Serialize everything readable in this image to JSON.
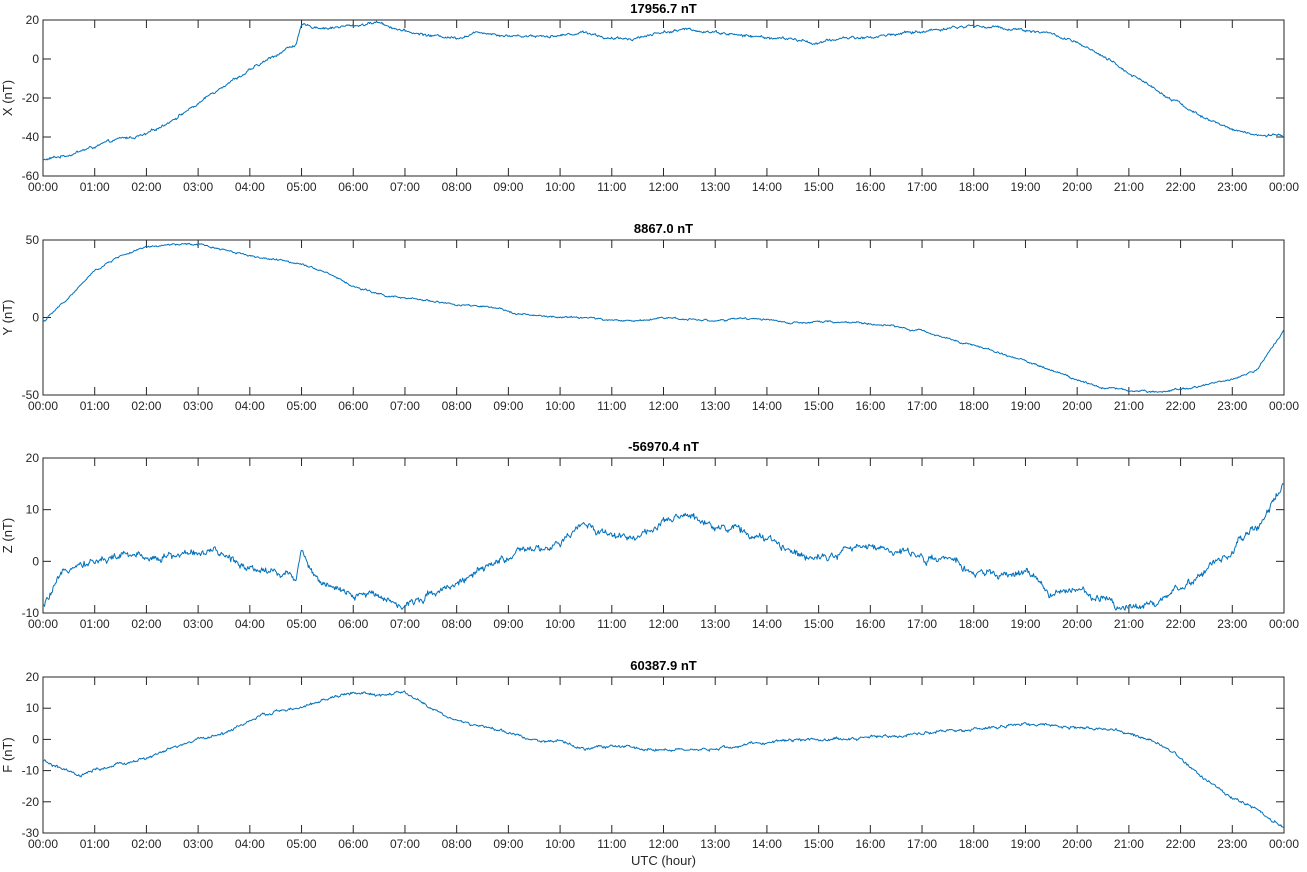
{
  "chart_data": [
    {
      "type": "line",
      "title": "17956.7 nT",
      "ylabel": "X (nT)",
      "xlabel": "",
      "ylim": [
        -60,
        20
      ],
      "yticks": [
        -60,
        -40,
        -20,
        0,
        20
      ],
      "xlim": [
        0,
        24
      ],
      "xtick_labels": [
        "00:00",
        "01:00",
        "02:00",
        "03:00",
        "04:00",
        "05:00",
        "06:00",
        "07:00",
        "08:00",
        "09:00",
        "10:00",
        "11:00",
        "12:00",
        "13:00",
        "14:00",
        "15:00",
        "16:00",
        "17:00",
        "18:00",
        "19:00",
        "20:00",
        "21:00",
        "22:00",
        "23:00",
        "00:00"
      ],
      "grid": false,
      "series": [
        {
          "color": "#0072BD",
          "x": [
            0,
            0.5,
            1,
            1.5,
            2,
            2.5,
            3,
            3.5,
            4,
            4.5,
            4.9,
            5,
            5.5,
            6,
            6.5,
            7,
            7.5,
            8,
            8.5,
            9,
            9.5,
            10,
            10.5,
            11,
            11.5,
            12,
            12.5,
            13,
            13.5,
            14,
            14.5,
            15,
            15.5,
            16,
            16.5,
            17,
            17.5,
            18,
            18.5,
            19,
            19.5,
            20,
            20.5,
            21,
            21.5,
            22,
            22.5,
            23,
            23.5,
            24
          ],
          "values": [
            -52,
            -49,
            -45,
            -41,
            -39,
            -31,
            -23,
            -13,
            -6,
            2,
            8,
            17,
            16,
            17,
            19,
            14,
            12,
            11,
            14,
            12,
            12,
            12,
            14,
            10,
            11,
            14,
            15,
            14,
            12,
            11,
            10,
            8,
            11,
            11,
            13,
            14,
            16,
            17,
            16,
            15,
            13,
            8,
            1,
            -7,
            -15,
            -23,
            -31,
            -36,
            -39,
            -40
          ],
          "noise": 0.7
        }
      ]
    },
    {
      "type": "line",
      "title": "8867.0 nT",
      "ylabel": "Y (nT)",
      "xlabel": "",
      "ylim": [
        -50,
        50
      ],
      "yticks": [
        -50,
        0,
        50
      ],
      "xlim": [
        0,
        24
      ],
      "xtick_labels": [
        "00:00",
        "01:00",
        "02:00",
        "03:00",
        "04:00",
        "05:00",
        "06:00",
        "07:00",
        "08:00",
        "09:00",
        "10:00",
        "11:00",
        "12:00",
        "13:00",
        "14:00",
        "15:00",
        "16:00",
        "17:00",
        "18:00",
        "19:00",
        "20:00",
        "21:00",
        "22:00",
        "23:00",
        "00:00"
      ],
      "grid": false,
      "series": [
        {
          "color": "#0072BD",
          "x": [
            0,
            0.5,
            1,
            1.5,
            2,
            2.5,
            3,
            3.5,
            4,
            4.5,
            5,
            5.5,
            6,
            6.5,
            7,
            7.5,
            8,
            8.5,
            9,
            9.5,
            10,
            10.5,
            11,
            11.5,
            12,
            12.5,
            13,
            13.5,
            14,
            14.5,
            15,
            15.5,
            16,
            16.5,
            17,
            17.5,
            18,
            18.5,
            19,
            19.5,
            20,
            20.5,
            21,
            21.5,
            22,
            22.5,
            23,
            23.5,
            24
          ],
          "values": [
            -3,
            13,
            30,
            40,
            45,
            47,
            47,
            44,
            40,
            37,
            35,
            29,
            20,
            15,
            12,
            11,
            8,
            7,
            4,
            1,
            0,
            0,
            -2,
            -2,
            0,
            -1,
            -2,
            -1,
            -1,
            -4,
            -3,
            -3,
            -4,
            -6,
            -9,
            -13,
            -18,
            -23,
            -28,
            -34,
            -40,
            -45,
            -47,
            -48,
            -46,
            -43,
            -40,
            -33,
            -8
          ],
          "noise": 0.6
        }
      ]
    },
    {
      "type": "line",
      "title": "-56970.4 nT",
      "ylabel": "Z (nT)",
      "xlabel": "",
      "ylim": [
        -10,
        20
      ],
      "yticks": [
        -10,
        0,
        10,
        20
      ],
      "xlim": [
        0,
        24
      ],
      "xtick_labels": [
        "00:00",
        "01:00",
        "02:00",
        "03:00",
        "04:00",
        "05:00",
        "06:00",
        "07:00",
        "08:00",
        "09:00",
        "10:00",
        "11:00",
        "12:00",
        "13:00",
        "14:00",
        "15:00",
        "16:00",
        "17:00",
        "18:00",
        "19:00",
        "20:00",
        "21:00",
        "22:00",
        "23:00",
        "00:00"
      ],
      "grid": false,
      "series": [
        {
          "color": "#0072BD",
          "x": [
            0,
            0.3,
            0.6,
            1,
            1.5,
            2,
            2.5,
            3,
            3.5,
            4,
            4.5,
            4.9,
            5,
            5.2,
            5.5,
            6,
            6.5,
            7,
            7.5,
            8,
            8.5,
            9,
            9.5,
            10,
            10.4,
            10.8,
            11,
            11.5,
            12,
            12.5,
            13,
            13.5,
            14,
            14.5,
            15,
            15.5,
            16,
            16.5,
            17,
            17.5,
            18,
            18.5,
            19,
            19.5,
            20,
            20.5,
            21,
            21.5,
            22,
            22.5,
            23,
            23.5,
            24
          ],
          "values": [
            -9,
            -4,
            0,
            0,
            1,
            1,
            1,
            2,
            1,
            -1,
            -2,
            -3,
            3,
            -2,
            -5,
            -7,
            -6,
            -9,
            -6,
            -4,
            -2,
            1,
            2,
            3,
            7,
            6,
            5,
            5,
            7,
            9,
            7,
            6,
            4,
            2,
            1,
            2,
            3,
            2,
            1,
            0,
            -2,
            -3,
            -2,
            -6,
            -6,
            -7,
            -9,
            -8,
            -5,
            -2,
            2,
            7,
            15
          ],
          "noise": 0.7
        }
      ]
    },
    {
      "type": "line",
      "title": "60387.9 nT",
      "ylabel": "F (nT)",
      "xlabel": "UTC (hour)",
      "ylim": [
        -30,
        20
      ],
      "yticks": [
        -30,
        -20,
        -10,
        0,
        10,
        20
      ],
      "xlim": [
        0,
        24
      ],
      "xtick_labels": [
        "00:00",
        "01:00",
        "02:00",
        "03:00",
        "04:00",
        "05:00",
        "06:00",
        "07:00",
        "08:00",
        "09:00",
        "10:00",
        "11:00",
        "12:00",
        "13:00",
        "14:00",
        "15:00",
        "16:00",
        "17:00",
        "18:00",
        "19:00",
        "20:00",
        "21:00",
        "22:00",
        "23:00",
        "00:00"
      ],
      "grid": false,
      "series": [
        {
          "color": "#0072BD",
          "x": [
            0,
            0.3,
            0.7,
            1,
            1.5,
            2,
            2.5,
            3,
            3.5,
            4,
            4.5,
            5,
            5.5,
            6,
            6.5,
            7,
            7.5,
            8,
            8.5,
            9,
            9.5,
            10,
            10.5,
            11,
            11.5,
            12,
            12.5,
            13,
            13.5,
            14,
            14.5,
            15,
            15.5,
            16,
            16.5,
            17,
            17.5,
            18,
            18.5,
            19,
            19.5,
            20,
            20.5,
            21,
            21.5,
            22,
            22.5,
            23,
            23.5,
            24
          ],
          "values": [
            -7,
            -9,
            -12,
            -10,
            -8,
            -6,
            -3,
            0,
            2,
            6,
            9,
            10,
            13,
            15,
            14,
            15,
            10,
            6,
            4,
            2,
            0,
            -1,
            -3,
            -2,
            -3,
            -3,
            -4,
            -3,
            -2,
            -1,
            0,
            0,
            0,
            1,
            1,
            2,
            3,
            3,
            4,
            5,
            4,
            4,
            3,
            2,
            -1,
            -6,
            -13,
            -19,
            -23,
            -28
          ],
          "noise": 0.45
        }
      ]
    }
  ]
}
